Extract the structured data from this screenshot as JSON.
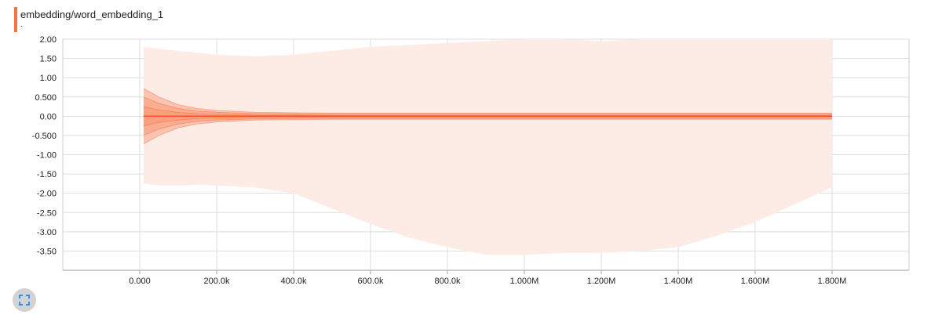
{
  "card": {
    "title": "embedding/word_embedding_1",
    "subtitle": "."
  },
  "colors": {
    "accent": "#ff7043",
    "band_outer": "#fdece6",
    "band_inner": "#fcc4ae",
    "band_core": "#fa9a7b",
    "median": "#f4511e"
  },
  "controls": {
    "expand_icon": "fullscreen-icon"
  },
  "chart_data": {
    "type": "area",
    "title": "embedding/word_embedding_1",
    "xlabel": "",
    "ylabel": "",
    "xlim": [
      -200000,
      2000000
    ],
    "ylim": [
      -4.0,
      2.0
    ],
    "grid": true,
    "x_ticks": [
      {
        "value": 0,
        "label": "0.000"
      },
      {
        "value": 200000,
        "label": "200.0k"
      },
      {
        "value": 400000,
        "label": "400.0k"
      },
      {
        "value": 600000,
        "label": "600.0k"
      },
      {
        "value": 800000,
        "label": "800.0k"
      },
      {
        "value": 1000000,
        "label": "1.000M"
      },
      {
        "value": 1200000,
        "label": "1.200M"
      },
      {
        "value": 1400000,
        "label": "1.400M"
      },
      {
        "value": 1600000,
        "label": "1.600M"
      },
      {
        "value": 1800000,
        "label": "1.800M"
      }
    ],
    "y_ticks": [
      {
        "value": 2.0,
        "label": "2.00"
      },
      {
        "value": 1.5,
        "label": "1.50"
      },
      {
        "value": 1.0,
        "label": "1.00"
      },
      {
        "value": 0.5,
        "label": "0.500"
      },
      {
        "value": 0.0,
        "label": "0.00"
      },
      {
        "value": -0.5,
        "label": "-0.500"
      },
      {
        "value": -1.0,
        "label": "-1.00"
      },
      {
        "value": -1.5,
        "label": "-1.50"
      },
      {
        "value": -2.0,
        "label": "-2.00"
      },
      {
        "value": -2.5,
        "label": "-2.50"
      },
      {
        "value": -3.0,
        "label": "-3.00"
      },
      {
        "value": -3.5,
        "label": "-3.50"
      }
    ],
    "x": [
      10000,
      50000,
      100000,
      150000,
      200000,
      300000,
      400000,
      500000,
      600000,
      700000,
      800000,
      900000,
      1000000,
      1100000,
      1200000,
      1300000,
      1400000,
      1500000,
      1600000,
      1700000,
      1800000
    ],
    "series": [
      {
        "band": "max",
        "values": [
          1.8,
          1.75,
          1.7,
          1.65,
          1.6,
          1.55,
          1.6,
          1.7,
          1.8,
          1.85,
          1.9,
          1.95,
          2.0,
          2.0,
          1.95,
          2.0,
          2.0,
          2.0,
          2.0,
          2.0,
          2.0
        ]
      },
      {
        "band": "p93",
        "values": [
          0.72,
          0.5,
          0.3,
          0.2,
          0.15,
          0.1,
          0.09,
          0.08,
          0.08,
          0.08,
          0.08,
          0.08,
          0.08,
          0.08,
          0.08,
          0.08,
          0.08,
          0.08,
          0.08,
          0.08,
          0.08
        ]
      },
      {
        "band": "p84",
        "values": [
          0.5,
          0.33,
          0.2,
          0.13,
          0.1,
          0.07,
          0.06,
          0.06,
          0.06,
          0.06,
          0.06,
          0.06,
          0.06,
          0.06,
          0.06,
          0.06,
          0.06,
          0.06,
          0.06,
          0.06,
          0.06
        ]
      },
      {
        "band": "p69",
        "values": [
          0.25,
          0.16,
          0.1,
          0.06,
          0.05,
          0.03,
          0.03,
          0.02,
          0.02,
          0.02,
          0.02,
          0.02,
          0.02,
          0.02,
          0.02,
          0.02,
          0.02,
          0.02,
          0.02,
          0.02,
          0.02
        ]
      },
      {
        "band": "p50",
        "values": [
          0.0,
          0.0,
          0.0,
          0.0,
          0.0,
          0.0,
          0.0,
          0.0,
          0.0,
          0.0,
          0.0,
          0.0,
          0.0,
          0.0,
          0.0,
          0.0,
          0.0,
          0.0,
          0.0,
          0.0,
          0.0
        ]
      },
      {
        "band": "p31",
        "values": [
          -0.25,
          -0.16,
          -0.1,
          -0.06,
          -0.05,
          -0.03,
          -0.03,
          -0.02,
          -0.02,
          -0.02,
          -0.02,
          -0.02,
          -0.02,
          -0.02,
          -0.02,
          -0.02,
          -0.02,
          -0.02,
          -0.02,
          -0.02,
          -0.02
        ]
      },
      {
        "band": "p16",
        "values": [
          -0.5,
          -0.33,
          -0.2,
          -0.13,
          -0.1,
          -0.07,
          -0.06,
          -0.06,
          -0.06,
          -0.06,
          -0.06,
          -0.06,
          -0.06,
          -0.06,
          -0.06,
          -0.06,
          -0.06,
          -0.06,
          -0.06,
          -0.06,
          -0.06
        ]
      },
      {
        "band": "p7",
        "values": [
          -0.72,
          -0.5,
          -0.3,
          -0.2,
          -0.15,
          -0.1,
          -0.09,
          -0.08,
          -0.08,
          -0.08,
          -0.08,
          -0.08,
          -0.08,
          -0.08,
          -0.08,
          -0.08,
          -0.08,
          -0.08,
          -0.08,
          -0.08,
          -0.08
        ]
      },
      {
        "band": "min",
        "values": [
          -1.75,
          -1.8,
          -1.8,
          -1.78,
          -1.8,
          -1.85,
          -2.0,
          -2.4,
          -2.8,
          -3.15,
          -3.4,
          -3.6,
          -3.6,
          -3.55,
          -3.55,
          -3.5,
          -3.4,
          -3.1,
          -2.75,
          -2.3,
          -1.85
        ]
      }
    ]
  }
}
